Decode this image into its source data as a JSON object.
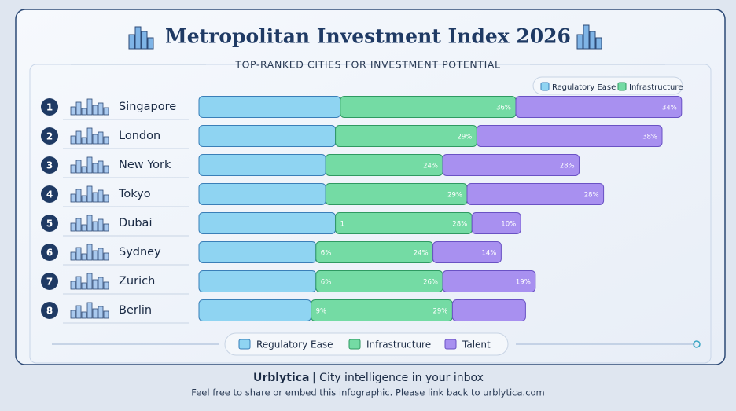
{
  "chart_data": {
    "type": "stacked-bar",
    "title": "Metropolitan Investment Index 2026",
    "subtitle": "TOP-RANKED CITIES FOR INVESTMENT POTENTIAL",
    "ranks": [
      1,
      2,
      3,
      4,
      5,
      6,
      7,
      8
    ],
    "categories": [
      "Singapore",
      "London",
      "New York",
      "Tokyo",
      "Dubai",
      "Sydney",
      "Zurich",
      "Berlin"
    ],
    "series": [
      {
        "name": "Regulatory Ease",
        "color": "#8fd4f2",
        "values": [
          29,
          28,
          26,
          26,
          28,
          24,
          24,
          23
        ]
      },
      {
        "name": "Infrastructure",
        "color": "#74dba4",
        "values": [
          36,
          29,
          24,
          29,
          28,
          24,
          26,
          29
        ],
        "value_labels": [
          "36%",
          "29%",
          "24%",
          "29%",
          "28%",
          "24%",
          "26%",
          "29%"
        ],
        "start_labels": [
          null,
          null,
          null,
          null,
          "1",
          "6%",
          "6%",
          "9%"
        ]
      },
      {
        "name": "Talent",
        "color": "#a890f0",
        "values": [
          34,
          38,
          28,
          28,
          10,
          14,
          19,
          15
        ],
        "value_labels": [
          "34%",
          "38%",
          "28%",
          "28%",
          "10%",
          "14%",
          "19%",
          null
        ]
      }
    ],
    "footer": {
      "brand": "Urblytica",
      "tagline": "| City intelligence in your inbox",
      "note": "Feel free to share or embed this infographic. Please link back to urblytica.com"
    }
  }
}
